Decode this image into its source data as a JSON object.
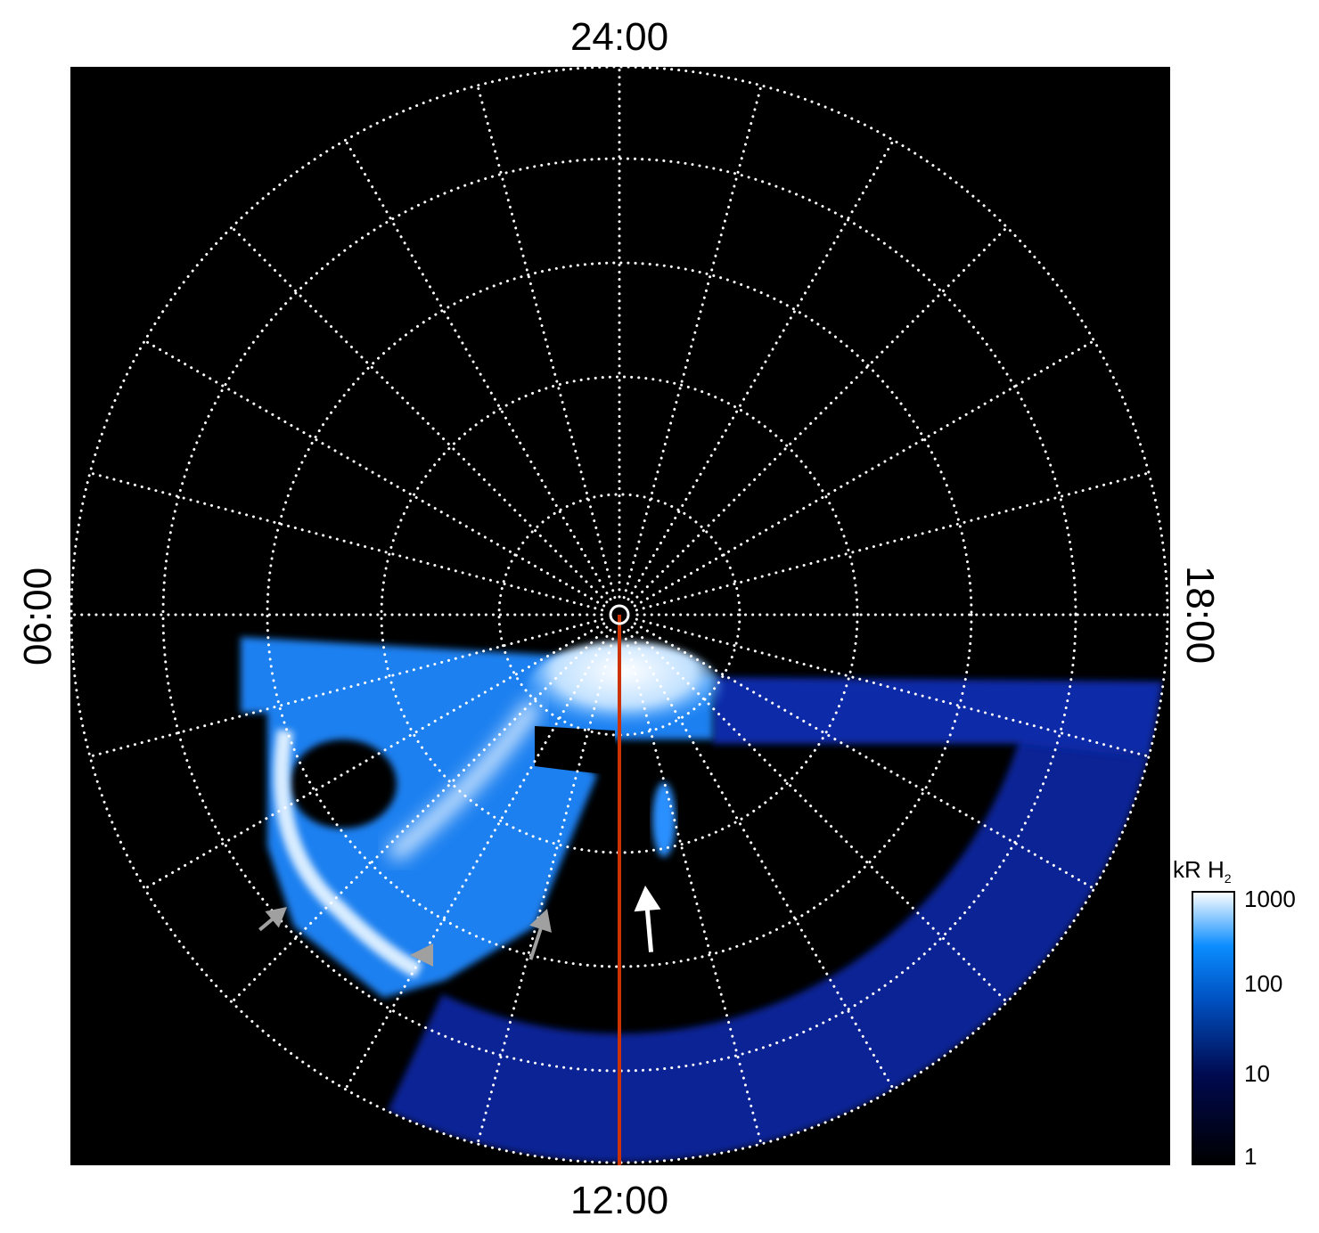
{
  "chart_data": {
    "type": "heatmap",
    "projection": "polar",
    "local_time_labels": {
      "top": "24:00",
      "bottom": "12:00",
      "left": "06:00",
      "right": "18:00"
    },
    "grid": true,
    "colorbar": {
      "label": "kR H",
      "label_subscript": "2",
      "scale": "log",
      "range": [
        1,
        1000
      ],
      "ticks": [
        "1000",
        "100",
        "10",
        "1"
      ],
      "colors": [
        "#000000",
        "#000a50",
        "#0050c0",
        "#0a8cff",
        "#ffffff"
      ]
    },
    "colors": {
      "background": "#000000",
      "reference_line": "#cc3300",
      "grid": "#ffffff",
      "arrows_gray": "#a0a0a0",
      "arrow_white": "#ffffff"
    }
  }
}
